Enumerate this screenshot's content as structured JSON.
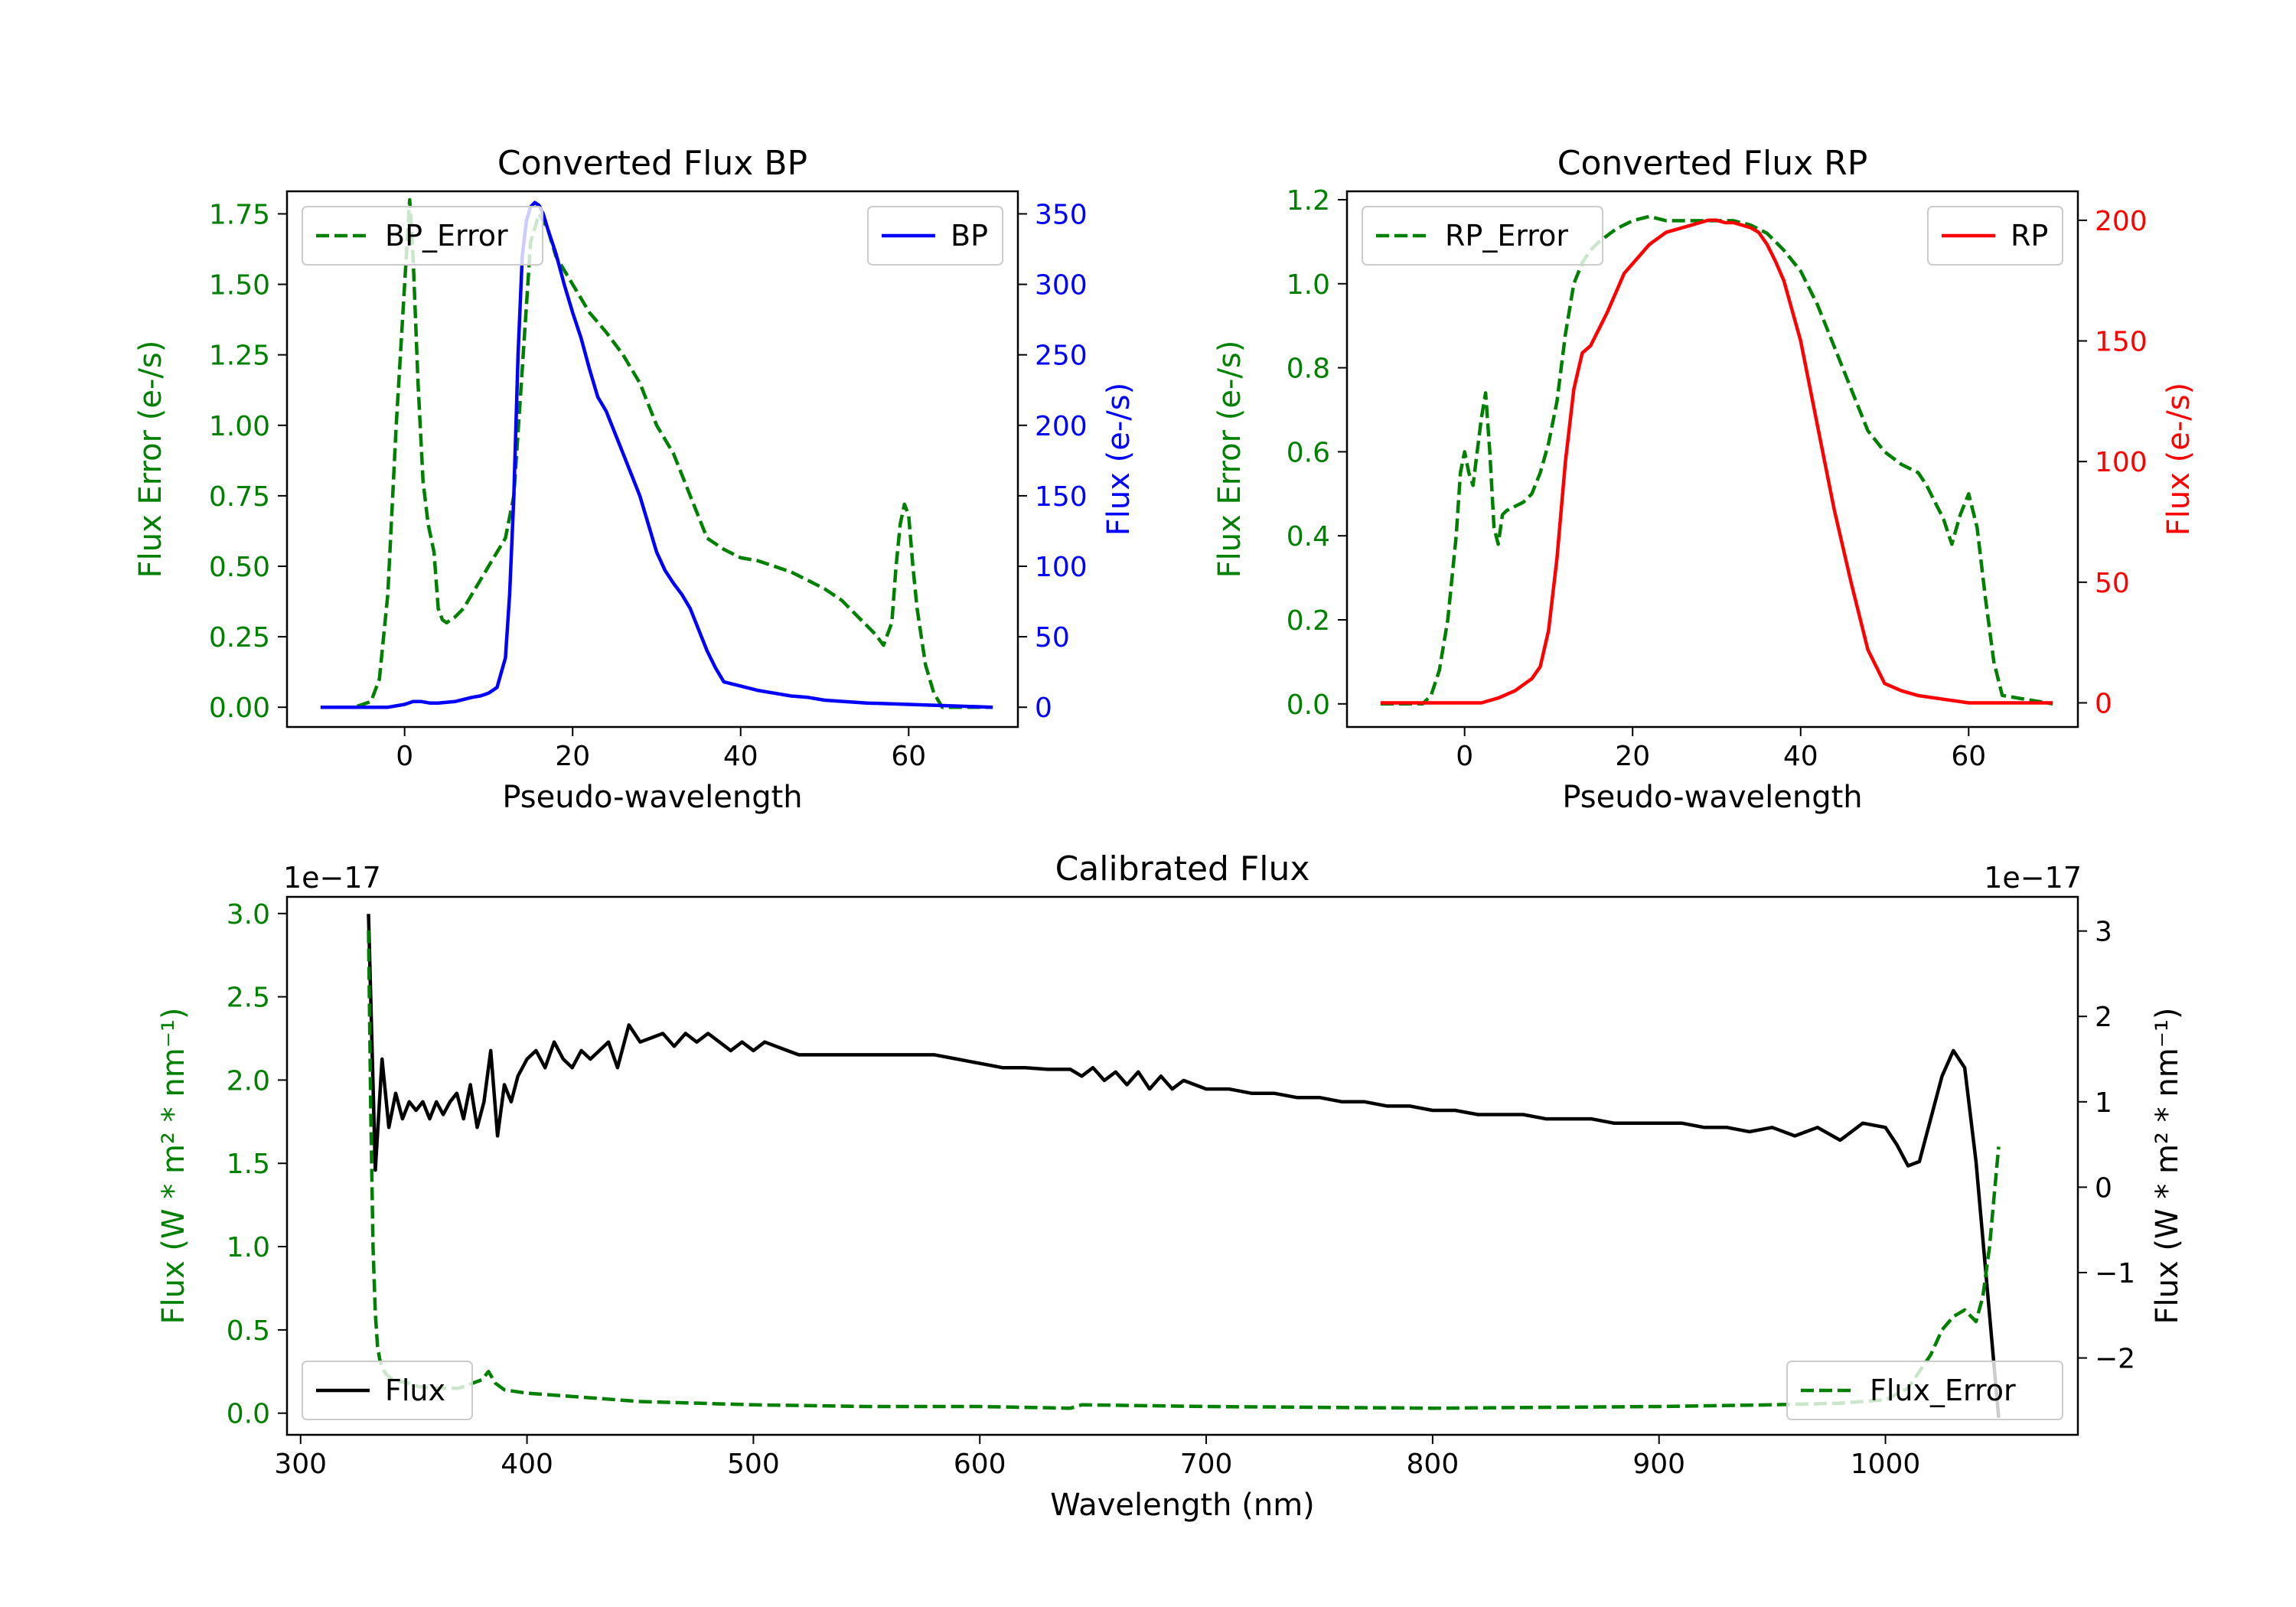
{
  "figure": {
    "background": "#ffffff"
  },
  "chart_data": [
    {
      "id": "bp",
      "type": "line",
      "title": "Converted Flux BP",
      "xlabel": "Pseudo-wavelength",
      "xlim": [
        -14,
        73
      ],
      "xticks": [
        0,
        20,
        40,
        60
      ],
      "left_axis": {
        "label": "Flux Error (e-/s)",
        "color": "#008000",
        "ylim": [
          -0.07,
          1.83
        ],
        "ticks": [
          0.0,
          0.25,
          0.5,
          0.75,
          1.0,
          1.25,
          1.5,
          1.75
        ],
        "tick_labels": [
          "0.00",
          "0.25",
          "0.50",
          "0.75",
          "1.00",
          "1.25",
          "1.50",
          "1.75"
        ]
      },
      "right_axis": {
        "label": "Flux (e-/s)",
        "color": "#0000ff",
        "ylim": [
          -14,
          366
        ],
        "ticks": [
          0,
          50,
          100,
          150,
          200,
          250,
          300,
          350
        ],
        "tick_labels": [
          "0",
          "50",
          "100",
          "150",
          "200",
          "250",
          "300",
          "350"
        ]
      },
      "series": [
        {
          "name": "BP_Error",
          "axis": "left",
          "color": "#008000",
          "dash": true,
          "x": [
            -10,
            -6,
            -4,
            -3,
            -2,
            -1,
            0,
            0.6,
            1.0,
            1.6,
            2.2,
            2.8,
            3.5,
            4.0,
            4.5,
            5.0,
            5.5,
            6,
            7,
            8,
            9,
            10,
            11,
            12,
            13,
            14,
            15,
            16,
            17,
            18,
            19,
            20,
            22,
            24,
            26,
            28,
            30,
            32,
            34,
            36,
            38,
            40,
            42,
            44,
            46,
            48,
            50,
            52,
            54,
            56,
            57,
            58,
            58.5,
            59,
            59.5,
            60,
            60.5,
            61,
            62,
            63,
            64,
            65,
            70
          ],
          "y": [
            0,
            0,
            0.02,
            0.1,
            0.4,
            1.0,
            1.5,
            1.8,
            1.6,
            1.15,
            0.8,
            0.65,
            0.55,
            0.35,
            0.31,
            0.3,
            0.31,
            0.32,
            0.35,
            0.4,
            0.45,
            0.5,
            0.55,
            0.6,
            0.75,
            1.2,
            1.65,
            1.75,
            1.7,
            1.6,
            1.55,
            1.5,
            1.4,
            1.33,
            1.25,
            1.15,
            1.0,
            0.9,
            0.75,
            0.6,
            0.56,
            0.53,
            0.52,
            0.5,
            0.48,
            0.45,
            0.42,
            0.38,
            0.32,
            0.26,
            0.22,
            0.3,
            0.5,
            0.65,
            0.72,
            0.68,
            0.5,
            0.35,
            0.15,
            0.05,
            0.0,
            0.0,
            0.0
          ]
        },
        {
          "name": "BP",
          "axis": "right",
          "color": "#0000ff",
          "dash": false,
          "x": [
            -10,
            -2,
            0,
            1,
            2,
            3,
            4,
            6,
            8,
            9,
            10,
            11,
            12,
            12.5,
            13,
            13.5,
            14,
            14.5,
            15,
            15.5,
            16,
            16.5,
            17,
            18,
            19,
            20,
            21,
            22,
            23,
            24,
            25,
            26,
            27,
            28,
            29,
            30,
            31,
            32,
            33,
            34,
            35,
            36,
            37,
            38,
            40,
            42,
            44,
            46,
            48,
            50,
            55,
            60,
            65,
            70
          ],
          "y": [
            0,
            0,
            2,
            4,
            4,
            3,
            3,
            4,
            7,
            8,
            10,
            14,
            35,
            80,
            150,
            250,
            320,
            345,
            355,
            358,
            356,
            350,
            340,
            322,
            300,
            280,
            262,
            240,
            220,
            210,
            195,
            180,
            165,
            150,
            130,
            110,
            97,
            88,
            80,
            70,
            55,
            40,
            28,
            18,
            15,
            12,
            10,
            8,
            7,
            5,
            3,
            2,
            1,
            0
          ]
        }
      ],
      "legends": [
        {
          "items": [
            "BP_Error"
          ],
          "placement": "upper-left"
        },
        {
          "items": [
            "BP"
          ],
          "placement": "upper-right"
        }
      ]
    },
    {
      "id": "rp",
      "type": "line",
      "title": "Converted Flux RP",
      "xlabel": "Pseudo-wavelength",
      "xlim": [
        -14,
        73
      ],
      "xticks": [
        0,
        20,
        40,
        60
      ],
      "left_axis": {
        "label": "Flux Error (e-/s)",
        "color": "#008000",
        "ylim": [
          -0.055,
          1.22
        ],
        "ticks": [
          0.0,
          0.2,
          0.4,
          0.6,
          0.8,
          1.0,
          1.2
        ],
        "tick_labels": [
          "0.0",
          "0.2",
          "0.4",
          "0.6",
          "0.8",
          "1.0",
          "1.2"
        ]
      },
      "right_axis": {
        "label": "Flux (e-/s)",
        "color": "#ff0000",
        "ylim": [
          -10,
          212
        ],
        "ticks": [
          0,
          50,
          100,
          150,
          200
        ],
        "tick_labels": [
          "0",
          "50",
          "100",
          "150",
          "200"
        ]
      },
      "series": [
        {
          "name": "RP_Error",
          "axis": "left",
          "color": "#008000",
          "dash": true,
          "x": [
            -10,
            -5,
            -4,
            -3,
            -2,
            -1,
            -0.5,
            0,
            0.5,
            1.0,
            1.5,
            2.0,
            2.5,
            3.0,
            3.5,
            4.0,
            4.5,
            5,
            6,
            7,
            8,
            9,
            10,
            11,
            12,
            13,
            14,
            15,
            16,
            18,
            20,
            22,
            24,
            26,
            28,
            30,
            32,
            34,
            36,
            38,
            40,
            42,
            44,
            46,
            48,
            50,
            52,
            54,
            55,
            56,
            57,
            58,
            59,
            60,
            61,
            62,
            63,
            64,
            70
          ],
          "y": [
            0,
            0,
            0.02,
            0.08,
            0.2,
            0.4,
            0.55,
            0.6,
            0.55,
            0.52,
            0.6,
            0.68,
            0.74,
            0.6,
            0.42,
            0.38,
            0.45,
            0.46,
            0.47,
            0.48,
            0.5,
            0.55,
            0.62,
            0.72,
            0.88,
            1.0,
            1.05,
            1.08,
            1.1,
            1.13,
            1.15,
            1.16,
            1.15,
            1.15,
            1.15,
            1.15,
            1.15,
            1.14,
            1.12,
            1.08,
            1.03,
            0.95,
            0.85,
            0.75,
            0.65,
            0.6,
            0.57,
            0.55,
            0.52,
            0.48,
            0.44,
            0.38,
            0.45,
            0.5,
            0.42,
            0.25,
            0.1,
            0.02,
            0.0
          ]
        },
        {
          "name": "RP",
          "axis": "right",
          "color": "#ff0000",
          "dash": false,
          "x": [
            -10,
            0,
            2,
            4,
            6,
            8,
            9,
            10,
            11,
            12,
            13,
            14,
            15,
            16,
            17,
            18,
            19,
            20,
            22,
            24,
            26,
            28,
            29,
            30,
            31,
            32,
            33,
            34,
            35,
            36,
            37,
            38,
            40,
            42,
            44,
            46,
            48,
            50,
            52,
            54,
            56,
            58,
            60,
            65,
            70
          ],
          "y": [
            0,
            0,
            0,
            2,
            5,
            10,
            15,
            30,
            60,
            100,
            130,
            145,
            148,
            155,
            162,
            170,
            178,
            182,
            190,
            195,
            197,
            199,
            200,
            200,
            199,
            199,
            198,
            197,
            195,
            190,
            183,
            175,
            150,
            115,
            80,
            50,
            22,
            8,
            5,
            3,
            2,
            1,
            0,
            0,
            0
          ]
        }
      ],
      "legends": [
        {
          "items": [
            "RP_Error"
          ],
          "placement": "upper-left"
        },
        {
          "items": [
            "RP"
          ],
          "placement": "upper-right"
        }
      ]
    },
    {
      "id": "cal",
      "type": "line",
      "title": "Calibrated Flux",
      "xlabel": "Wavelength (nm)",
      "xlim": [
        294,
        1085
      ],
      "xticks": [
        300,
        400,
        500,
        600,
        700,
        800,
        900,
        1000
      ],
      "left_axis": {
        "label": "Flux (W * m² * nm⁻¹)",
        "color": "#008000",
        "ylim": [
          -0.13,
          3.1
        ],
        "offset_text": "1e−17",
        "ticks": [
          0.0,
          0.5,
          1.0,
          1.5,
          2.0,
          2.5,
          3.0
        ],
        "tick_labels": [
          "0.0",
          "0.5",
          "1.0",
          "1.5",
          "2.0",
          "2.5",
          "3.0"
        ]
      },
      "right_axis": {
        "label": "Flux (W * m² * nm⁻¹)",
        "color": "#000000",
        "ylim": [
          -2.9,
          3.4
        ],
        "offset_text": "1e−17",
        "ticks": [
          -2,
          -1,
          0,
          1,
          2,
          3
        ],
        "tick_labels": [
          "−2",
          "−1",
          "0",
          "1",
          "2",
          "3"
        ]
      },
      "series": [
        {
          "name": "Flux",
          "axis": "right",
          "color": "#000000",
          "dash": false,
          "x": [
            330,
            333,
            336,
            339,
            342,
            345,
            348,
            351,
            354,
            357,
            360,
            363,
            366,
            369,
            372,
            375,
            378,
            381,
            384,
            387,
            390,
            393,
            396,
            400,
            404,
            408,
            412,
            416,
            420,
            424,
            428,
            432,
            436,
            440,
            445,
            450,
            455,
            460,
            465,
            470,
            475,
            480,
            485,
            490,
            495,
            500,
            505,
            510,
            515,
            520,
            530,
            540,
            550,
            560,
            570,
            580,
            590,
            600,
            610,
            620,
            630,
            640,
            645,
            650,
            655,
            660,
            665,
            670,
            675,
            680,
            685,
            690,
            700,
            710,
            720,
            730,
            740,
            750,
            760,
            770,
            780,
            790,
            800,
            810,
            820,
            830,
            840,
            850,
            860,
            870,
            880,
            890,
            900,
            910,
            920,
            930,
            940,
            950,
            960,
            970,
            980,
            990,
            1000,
            1005,
            1010,
            1015,
            1020,
            1025,
            1030,
            1035,
            1040,
            1045,
            1050
          ],
          "y": [
            3.2,
            0.2,
            1.5,
            0.7,
            1.1,
            0.8,
            1.0,
            0.9,
            1.0,
            0.8,
            1.0,
            0.85,
            1.0,
            1.1,
            0.8,
            1.2,
            0.7,
            1.0,
            1.6,
            0.6,
            1.2,
            1.0,
            1.3,
            1.5,
            1.6,
            1.4,
            1.7,
            1.5,
            1.4,
            1.6,
            1.5,
            1.6,
            1.7,
            1.4,
            1.9,
            1.7,
            1.75,
            1.8,
            1.65,
            1.8,
            1.7,
            1.8,
            1.7,
            1.6,
            1.7,
            1.6,
            1.7,
            1.65,
            1.6,
            1.55,
            1.55,
            1.55,
            1.55,
            1.55,
            1.55,
            1.55,
            1.5,
            1.45,
            1.4,
            1.4,
            1.38,
            1.38,
            1.3,
            1.4,
            1.25,
            1.35,
            1.2,
            1.35,
            1.15,
            1.3,
            1.15,
            1.25,
            1.15,
            1.15,
            1.1,
            1.1,
            1.05,
            1.05,
            1.0,
            1.0,
            0.95,
            0.95,
            0.9,
            0.9,
            0.85,
            0.85,
            0.85,
            0.8,
            0.8,
            0.8,
            0.75,
            0.75,
            0.75,
            0.75,
            0.7,
            0.7,
            0.65,
            0.7,
            0.6,
            0.7,
            0.55,
            0.75,
            0.7,
            0.5,
            0.25,
            0.3,
            0.8,
            1.3,
            1.6,
            1.4,
            0.3,
            -1.2,
            -2.7
          ]
        },
        {
          "name": "Flux_Error",
          "axis": "left",
          "color": "#008000",
          "dash": true,
          "x": [
            330,
            331,
            332,
            333,
            334,
            335,
            336,
            338,
            340,
            344,
            348,
            352,
            360,
            370,
            380,
            383,
            386,
            390,
            400,
            420,
            450,
            500,
            550,
            600,
            640,
            645,
            700,
            800,
            900,
            950,
            980,
            1000,
            1010,
            1020,
            1025,
            1030,
            1035,
            1040,
            1043,
            1046,
            1048,
            1050
          ],
          "y": [
            2.9,
            1.8,
            1.0,
            0.6,
            0.4,
            0.32,
            0.27,
            0.23,
            0.21,
            0.19,
            0.18,
            0.16,
            0.15,
            0.15,
            0.2,
            0.25,
            0.18,
            0.14,
            0.12,
            0.1,
            0.07,
            0.05,
            0.04,
            0.04,
            0.03,
            0.05,
            0.04,
            0.03,
            0.04,
            0.05,
            0.06,
            0.08,
            0.15,
            0.35,
            0.5,
            0.58,
            0.62,
            0.55,
            0.7,
            1.0,
            1.3,
            1.6
          ]
        }
      ],
      "legends": [
        {
          "items": [
            "Flux"
          ],
          "placement": "lower-left"
        },
        {
          "items": [
            "Flux_Error"
          ],
          "placement": "lower-right"
        }
      ]
    }
  ]
}
